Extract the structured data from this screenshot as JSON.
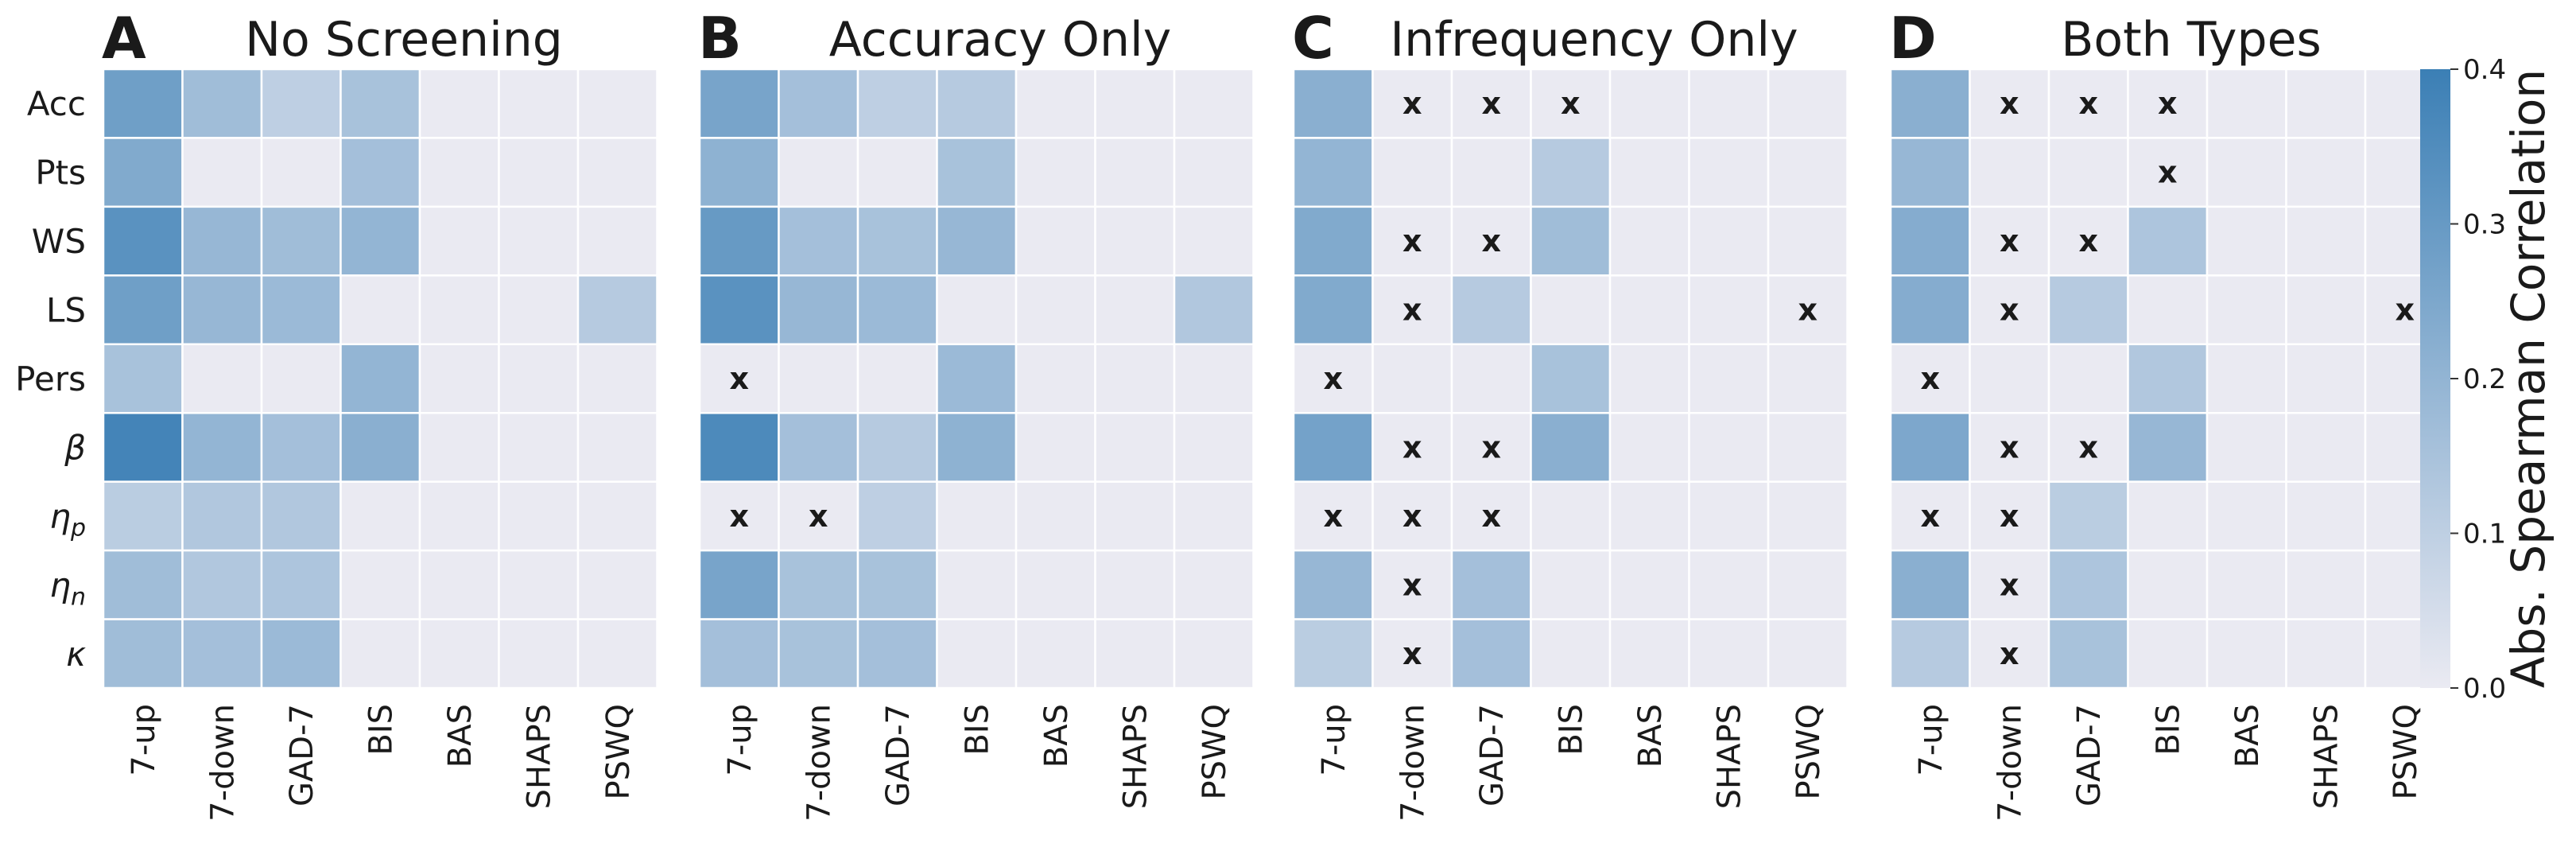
{
  "chart_data": {
    "type": "heatmap",
    "row_labels": [
      "Acc",
      "Pts",
      "WS",
      "LS",
      "Pers",
      "β",
      "η",
      "η",
      "κ"
    ],
    "row_label_subscripts": [
      "",
      "",
      "",
      "",
      "",
      "",
      "p",
      "n",
      ""
    ],
    "col_labels": [
      "7-up",
      "7-down",
      "GAD-7",
      "BIS",
      "BAS",
      "SHAPS",
      "PSWQ"
    ],
    "colorbar": {
      "label": "Abs. Spearman Correlation",
      "min": 0.0,
      "max": 0.4,
      "ticks": [
        "0.0",
        "0.1",
        "0.2",
        "0.3",
        "0.4"
      ],
      "color_low": "#eaeaf2",
      "color_high": "#3b7fb5"
    },
    "missing_marker": "x",
    "panels": [
      {
        "letter": "A",
        "title": "No Screening",
        "values": [
          [
            0.28,
            0.17,
            0.1,
            0.15,
            0,
            0,
            0
          ],
          [
            0.24,
            0,
            0,
            0.16,
            0,
            0,
            0
          ],
          [
            0.33,
            0.19,
            0.17,
            0.2,
            0,
            0,
            0
          ],
          [
            0.28,
            0.19,
            0.18,
            0,
            0,
            0,
            0.12
          ],
          [
            0.15,
            0,
            0,
            0.2,
            0,
            0,
            0
          ],
          [
            0.38,
            0.2,
            0.16,
            0.22,
            0,
            0,
            0
          ],
          [
            0.11,
            0.13,
            0.13,
            0,
            0,
            0,
            0
          ],
          [
            0.17,
            0.13,
            0.14,
            0,
            0,
            0,
            0
          ],
          [
            0.17,
            0.16,
            0.18,
            0,
            0,
            0,
            0
          ]
        ],
        "x_cells": []
      },
      {
        "letter": "B",
        "title": "Accuracy Only",
        "values": [
          [
            0.26,
            0.16,
            0.1,
            0.12,
            0,
            0,
            0
          ],
          [
            0.21,
            0,
            0,
            0.15,
            0,
            0,
            0
          ],
          [
            0.3,
            0.16,
            0.15,
            0.19,
            0,
            0,
            0
          ],
          [
            0.33,
            0.19,
            0.18,
            0,
            0,
            0,
            0.13
          ],
          [
            0,
            0,
            0,
            0.18,
            0,
            0,
            0
          ],
          [
            0.36,
            0.16,
            0.12,
            0.21,
            0,
            0,
            0
          ],
          [
            0,
            0,
            0.1,
            0,
            0,
            0,
            0
          ],
          [
            0.26,
            0.15,
            0.15,
            0,
            0,
            0,
            0
          ],
          [
            0.16,
            0.15,
            0.16,
            0,
            0,
            0,
            0
          ]
        ],
        "x_cells": [
          [
            4,
            0
          ],
          [
            6,
            0
          ],
          [
            6,
            1
          ]
        ]
      },
      {
        "letter": "C",
        "title": "Infrequency Only",
        "values": [
          [
            0.22,
            0,
            0,
            0,
            0,
            0,
            0
          ],
          [
            0.2,
            0,
            0,
            0.12,
            0,
            0,
            0
          ],
          [
            0.24,
            0,
            0,
            0.17,
            0,
            0,
            0
          ],
          [
            0.24,
            0,
            0.12,
            0,
            0,
            0,
            0
          ],
          [
            0,
            0,
            0,
            0.15,
            0,
            0,
            0
          ],
          [
            0.27,
            0,
            0,
            0.22,
            0,
            0,
            0
          ],
          [
            0,
            0,
            0,
            0,
            0,
            0,
            0
          ],
          [
            0.19,
            0,
            0.16,
            0,
            0,
            0,
            0
          ],
          [
            0.11,
            0,
            0.16,
            0,
            0,
            0,
            0
          ]
        ],
        "x_cells": [
          [
            0,
            1
          ],
          [
            0,
            2
          ],
          [
            0,
            3
          ],
          [
            2,
            1
          ],
          [
            2,
            2
          ],
          [
            3,
            1
          ],
          [
            3,
            6
          ],
          [
            4,
            0
          ],
          [
            5,
            1
          ],
          [
            5,
            2
          ],
          [
            6,
            0
          ],
          [
            6,
            1
          ],
          [
            6,
            2
          ],
          [
            7,
            1
          ],
          [
            8,
            1
          ]
        ]
      },
      {
        "letter": "D",
        "title": "Both Types",
        "values": [
          [
            0.22,
            0,
            0,
            0,
            0,
            0,
            0
          ],
          [
            0.19,
            0,
            0,
            0,
            0,
            0,
            0
          ],
          [
            0.23,
            0,
            0,
            0.14,
            0,
            0,
            0
          ],
          [
            0.23,
            0,
            0.12,
            0,
            0,
            0,
            0
          ],
          [
            0,
            0,
            0,
            0.13,
            0,
            0,
            0
          ],
          [
            0.25,
            0,
            0,
            0.19,
            0,
            0,
            0
          ],
          [
            0,
            0,
            0.11,
            0,
            0,
            0,
            0
          ],
          [
            0.22,
            0,
            0.14,
            0,
            0,
            0,
            0
          ],
          [
            0.12,
            0,
            0.15,
            0,
            0,
            0,
            0
          ]
        ],
        "x_cells": [
          [
            0,
            1
          ],
          [
            0,
            2
          ],
          [
            0,
            3
          ],
          [
            1,
            3
          ],
          [
            2,
            1
          ],
          [
            2,
            2
          ],
          [
            3,
            1
          ],
          [
            3,
            6
          ],
          [
            4,
            0
          ],
          [
            5,
            1
          ],
          [
            5,
            2
          ],
          [
            6,
            0
          ],
          [
            6,
            1
          ],
          [
            7,
            1
          ],
          [
            8,
            1
          ]
        ]
      }
    ]
  }
}
